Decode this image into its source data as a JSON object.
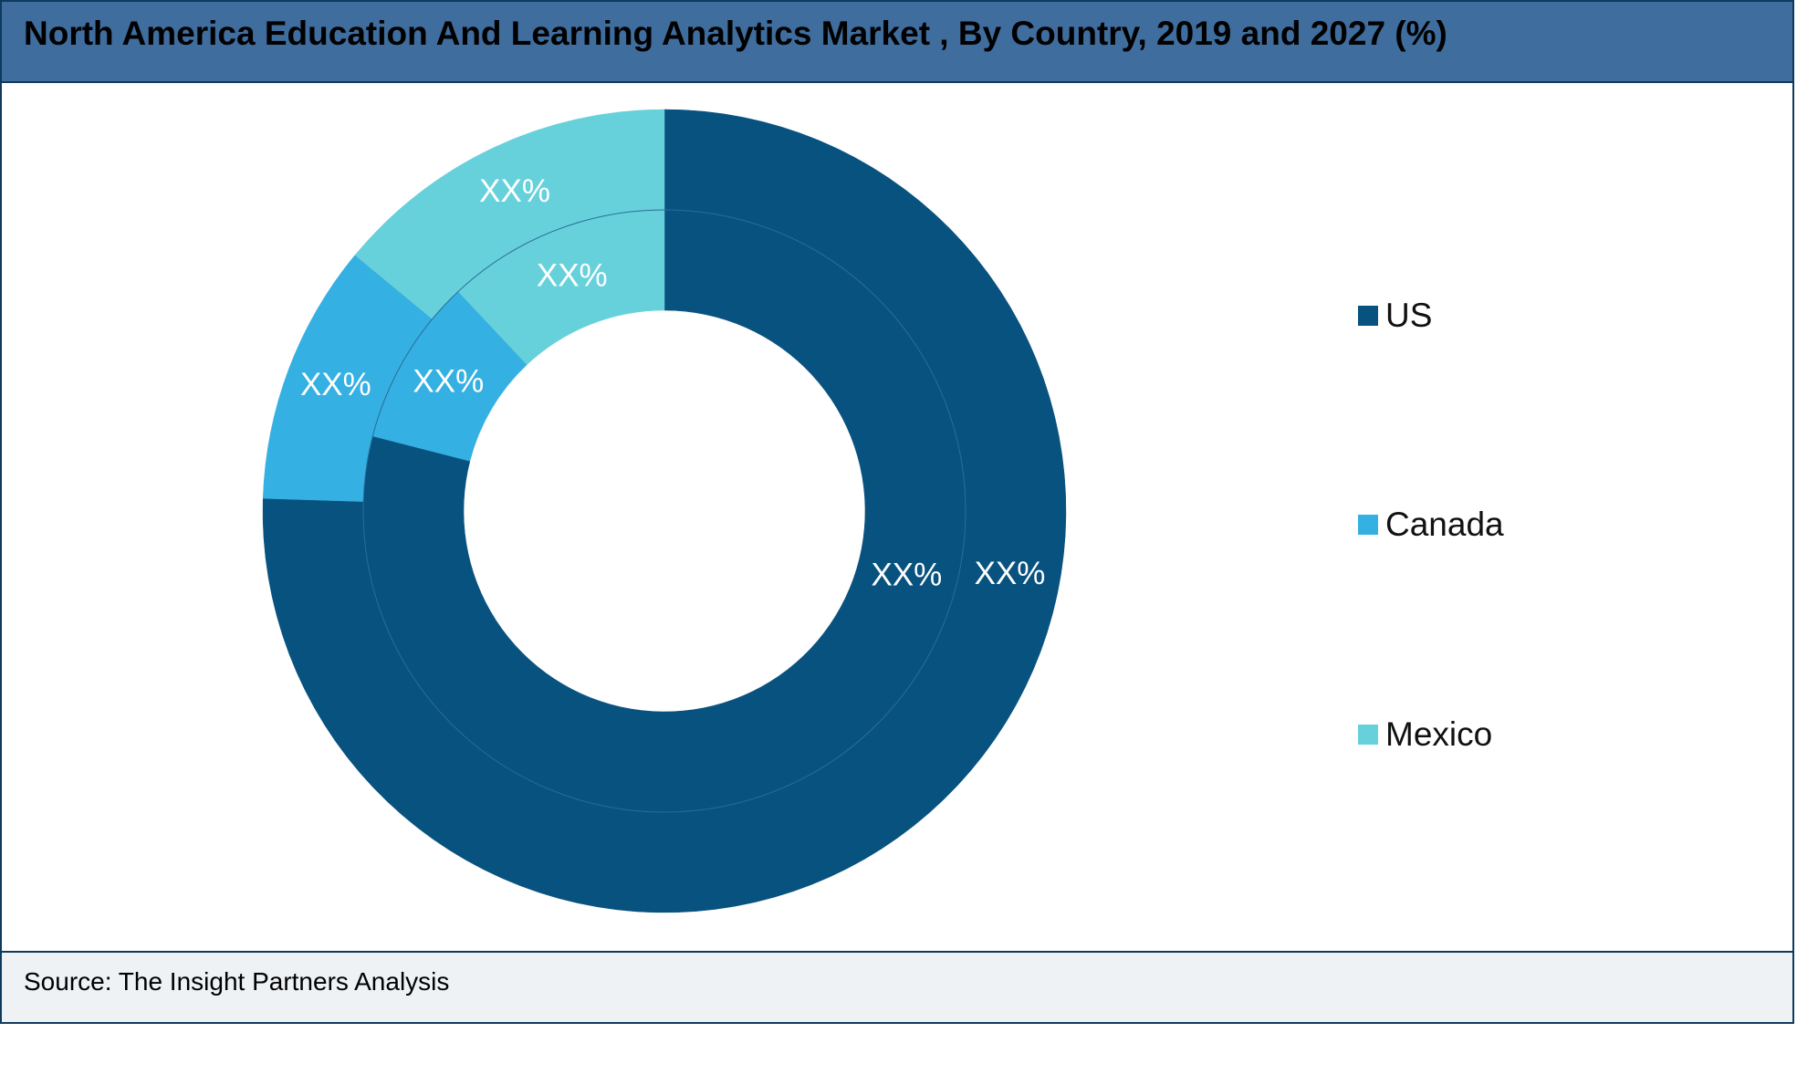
{
  "title": "North America Education And Learning Analytics Market , By Country, 2019 and 2027 (%)",
  "source": "Source: The Insight Partners Analysis",
  "chart_data": {
    "type": "pie",
    "subtype": "nested-donut",
    "title": "North America Education And Learning Analytics Market , By Country, 2019 and 2027 (%)",
    "categories": [
      "US",
      "Canada",
      "Mexico"
    ],
    "colors": [
      "#08527f",
      "#35b0e2",
      "#67d1db"
    ],
    "rings": [
      {
        "ring": "inner",
        "values": [
          79,
          9,
          12
        ],
        "labels": [
          "XX%",
          "XX%",
          "XX%"
        ]
      },
      {
        "ring": "outer",
        "values": [
          75.5,
          10.5,
          14
        ],
        "labels": [
          "XX%",
          "XX%",
          "XX%"
        ]
      }
    ],
    "legend": {
      "position": "right",
      "entries": [
        "US",
        "Canada",
        "Mexico"
      ]
    }
  }
}
